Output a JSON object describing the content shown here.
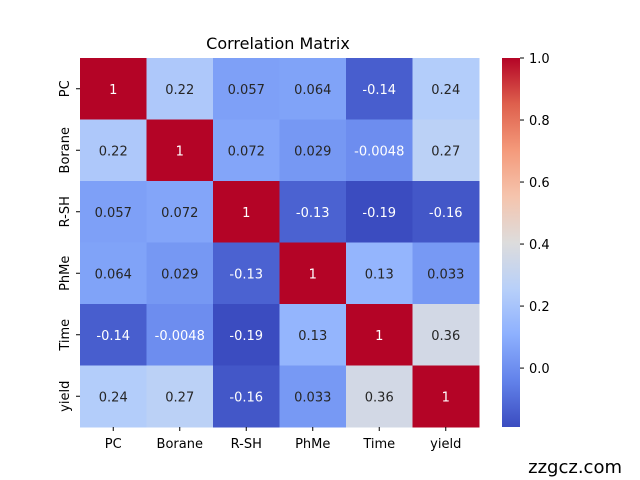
{
  "chart_data": {
    "type": "heatmap",
    "title": "Correlation Matrix",
    "xlabel": "",
    "ylabel": "",
    "labels": [
      "PC",
      "Borane",
      "R-SH",
      "PhMe",
      "Time",
      "yield"
    ],
    "values": [
      [
        1,
        0.22,
        0.057,
        0.064,
        -0.14,
        0.24
      ],
      [
        0.22,
        1,
        0.072,
        0.029,
        -0.0048,
        0.27
      ],
      [
        0.057,
        0.072,
        1,
        -0.13,
        -0.19,
        -0.16
      ],
      [
        0.064,
        0.029,
        -0.13,
        1,
        0.13,
        0.033
      ],
      [
        -0.14,
        -0.0048,
        -0.19,
        0.13,
        1,
        0.36
      ],
      [
        0.24,
        0.27,
        -0.16,
        0.033,
        0.36,
        1
      ]
    ],
    "cell_text": [
      [
        "1",
        "0.22",
        "0.057",
        "0.064",
        "-0.14",
        "0.24"
      ],
      [
        "0.22",
        "1",
        "0.072",
        "0.029",
        "-0.0048",
        "0.27"
      ],
      [
        "0.057",
        "0.072",
        "1",
        "-0.13",
        "-0.19",
        "-0.16"
      ],
      [
        "0.064",
        "0.029",
        "-0.13",
        "1",
        "0.13",
        "0.033"
      ],
      [
        "-0.14",
        "-0.0048",
        "-0.19",
        "0.13",
        "1",
        "0.36"
      ],
      [
        "0.24",
        "0.27",
        "-0.16",
        "0.033",
        "0.36",
        "1"
      ]
    ],
    "colormap": "coolwarm",
    "colorbar": {
      "vmin": -0.19,
      "vmax": 1.0,
      "ticks": [
        0.0,
        0.2,
        0.4,
        0.6,
        0.8,
        1.0
      ],
      "tick_labels": [
        "0.0",
        "0.2",
        "0.4",
        "0.6",
        "0.8",
        "1.0"
      ]
    }
  },
  "watermark": "zzgcz.com"
}
